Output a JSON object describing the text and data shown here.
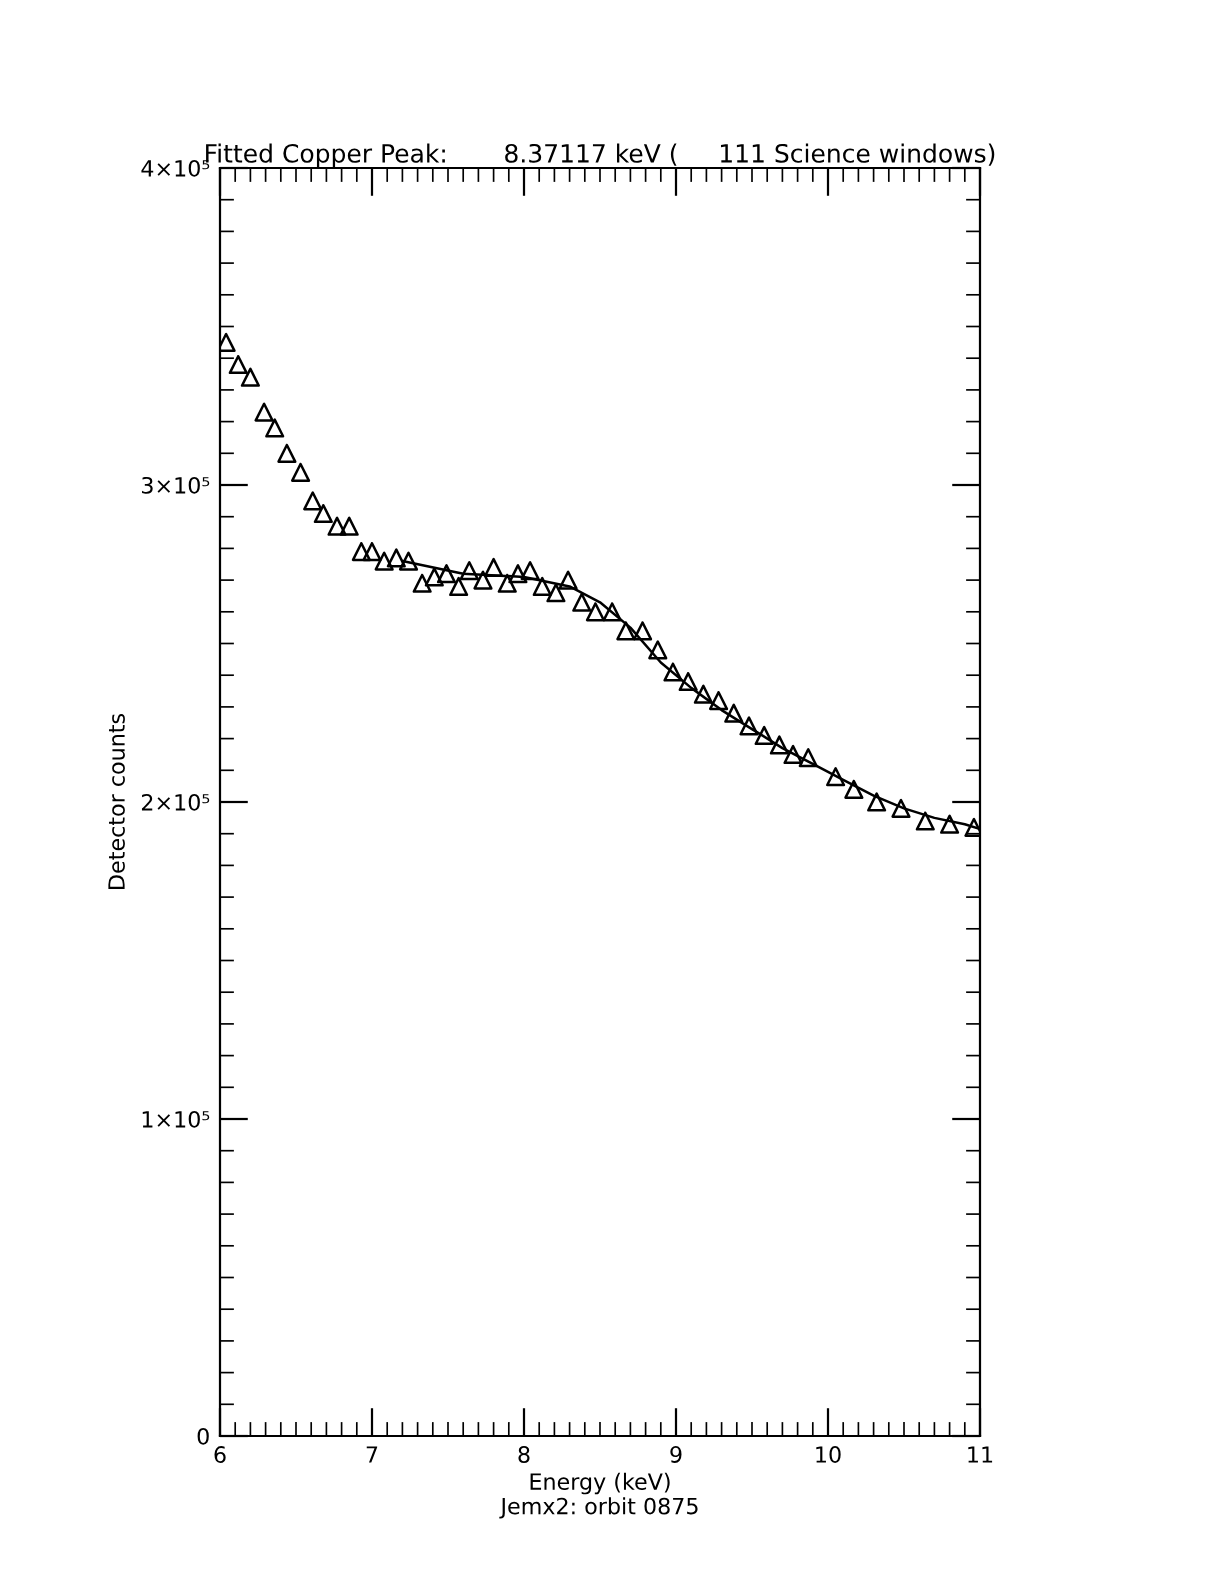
{
  "chart_data": {
    "type": "scatter",
    "title": "Fitted Copper Peak:       8.37117 keV (     111 Science windows)",
    "xlabel": "Energy (keV)",
    "ylabel": "Detector counts",
    "annotations": [
      "Jemx2: orbit 0875"
    ],
    "series": [
      {
        "color": "#000000",
        "marker": "triangle",
        "x": [
          6.04,
          6.12,
          6.2,
          6.29,
          6.36,
          6.44,
          6.53,
          6.61,
          6.68,
          6.77,
          6.85,
          6.93,
          7.0,
          7.08,
          7.16,
          7.24,
          7.33,
          7.41,
          7.49,
          7.57,
          7.64,
          7.73,
          7.8,
          7.89,
          7.96,
          8.04,
          8.12,
          8.21,
          8.29,
          8.38,
          8.47,
          8.58,
          8.67,
          8.78,
          8.88,
          8.98,
          9.08,
          9.18,
          9.28,
          9.38,
          9.48,
          9.58,
          9.68,
          9.77,
          9.87,
          10.05,
          10.17,
          10.32,
          10.48,
          10.64,
          10.8,
          10.96
        ],
        "values": [
          345000,
          338000,
          334000,
          323000,
          318000,
          310000,
          304000,
          295000,
          291000,
          287000,
          287000,
          279000,
          279000,
          276000,
          277000,
          276000,
          269000,
          271000,
          272000,
          268000,
          273000,
          270000,
          274000,
          269000,
          272000,
          273000,
          268000,
          266000,
          270000,
          263000,
          260000,
          260000,
          254000,
          254000,
          248000,
          241000,
          238000,
          234000,
          232000,
          228000,
          224000,
          221000,
          218000,
          215000,
          214000,
          208000,
          204000,
          200000,
          198000,
          194000,
          193000,
          192000
        ]
      },
      {
        "type": "line",
        "color": "#000000",
        "marker": "none",
        "line_style": "solid",
        "x": [
          7.2,
          7.6,
          8.0,
          8.3,
          8.5,
          8.7,
          8.9,
          9.1,
          9.3,
          9.5,
          9.7,
          9.9,
          10.1,
          10.3,
          10.5,
          10.7,
          10.9,
          11.0
        ],
        "values": [
          276000,
          272000,
          271000,
          268000,
          263000,
          255000,
          244000,
          236000,
          229000,
          223000,
          217000,
          212000,
          207000,
          202000,
          198000,
          195000,
          193000,
          191500
        ]
      }
    ],
    "xlim": [
      6,
      11
    ],
    "xticks": [
      6,
      7,
      8,
      9,
      10,
      11
    ],
    "ylim": [
      0,
      400000
    ],
    "yticks": [
      0,
      {
        "value": 100000,
        "label": "1×10⁵"
      },
      {
        "value": 200000,
        "label": "2×10⁵"
      },
      {
        "value": 300000,
        "label": "3×10⁵"
      },
      {
        "value": 400000,
        "label": "4×10⁵"
      }
    ],
    "grid": false,
    "legend": false
  }
}
